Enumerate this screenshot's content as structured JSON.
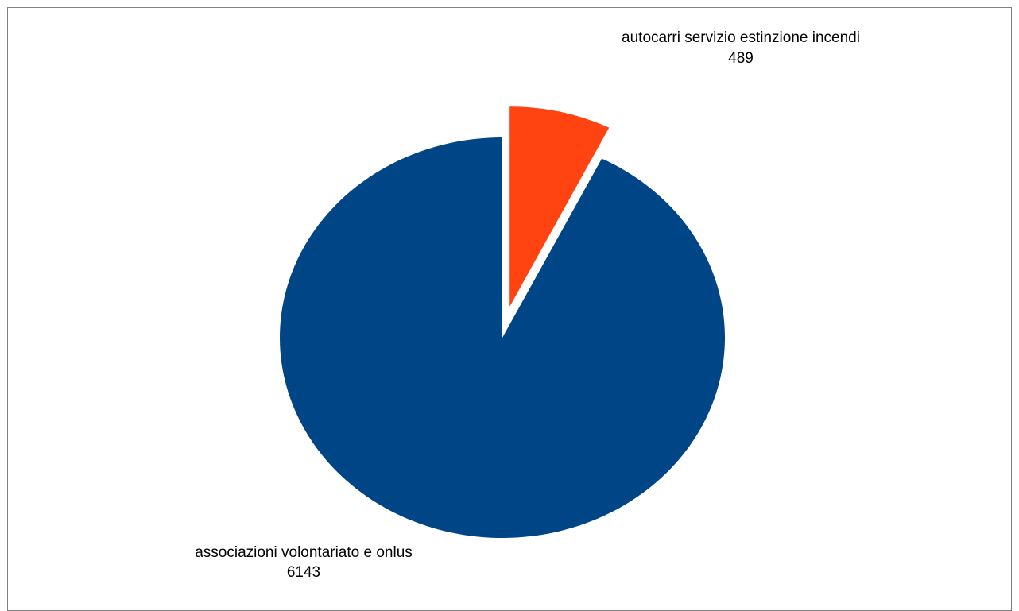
{
  "chart_data": {
    "type": "pie",
    "title": "",
    "legend": "none",
    "slices": [
      {
        "label": "autocarri servizio estinzione incendi",
        "value": 489,
        "value_label": "489",
        "color": "#ff4411",
        "exploded": true
      },
      {
        "label": "associazioni volontariato e onlus",
        "value": 6143,
        "value_label": "6143",
        "color": "#004586",
        "exploded": false
      }
    ]
  }
}
